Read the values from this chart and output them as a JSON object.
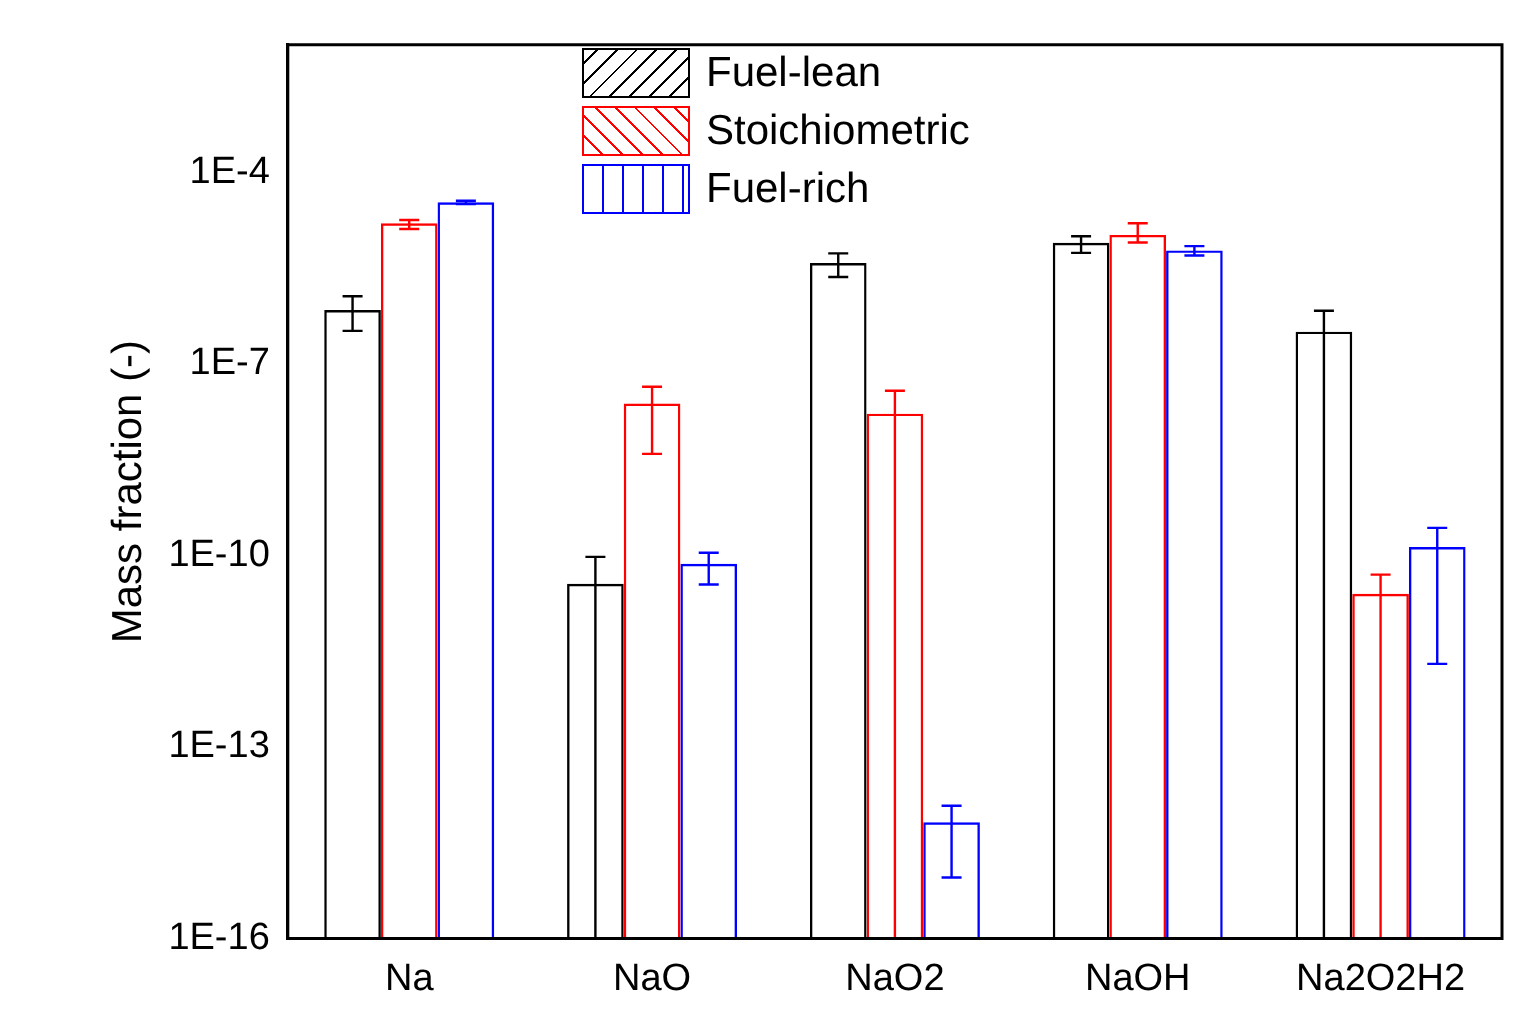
{
  "chart_data": {
    "type": "bar",
    "ylabel": "Mass fraction (-)",
    "categories": [
      "Na",
      "NaO",
      "NaO2",
      "NaOH",
      "Na2O2H2"
    ],
    "log": "y",
    "ylim": [
      1e-16,
      0.01
    ],
    "yticks": [
      {
        "value": 1e-16,
        "label": "1E-16"
      },
      {
        "value": 1e-13,
        "label": "1E-13"
      },
      {
        "value": 1e-10,
        "label": "1E-10"
      },
      {
        "value": 1e-07,
        "label": "1E-7"
      },
      {
        "value": 0.0001,
        "label": "1E-4"
      }
    ],
    "grid": false,
    "legend": "top",
    "series": [
      {
        "name": "Fuel-lean",
        "color": "#000000",
        "values": [
          7e-07,
          3.6e-11,
          3.8e-06,
          7.9e-06,
          3.2e-07
        ],
        "errors": [
          [
            3.3e-07,
            1.15e-06
          ],
          [
            1e-16,
            9.5e-11
          ],
          [
            2.3e-06,
            5.4e-06
          ],
          [
            5.5e-06,
            1e-05
          ],
          [
            1e-16,
            6.8e-07
          ]
        ]
      },
      {
        "name": "Stoichiometric",
        "color": "#ff0000",
        "values": [
          1.6e-05,
          2.4e-08,
          1.66e-08,
          1.05e-05,
          2.5e-11
        ],
        "errors": [
          [
            1.3e-05,
            1.8e-05
          ],
          [
            3.9e-09,
            4.4e-08
          ],
          [
            1e-16,
            3.8e-08
          ],
          [
            8e-06,
            1.6e-05
          ],
          [
            1e-16,
            5e-11
          ]
        ]
      },
      {
        "name": "Fuel-rich",
        "color": "#0000ff",
        "values": [
          3.4e-05,
          7.4e-11,
          6.6e-15,
          6e-06,
          1.35e-10
        ],
        "errors": [
          [
            3.2e-05,
            3.6e-05
          ],
          [
            3.5e-11,
            1.1e-10
          ],
          [
            9e-16,
            1.2e-14
          ],
          [
            5e-06,
            7e-06
          ],
          [
            2e-12,
            2.7e-10
          ]
        ]
      }
    ]
  }
}
